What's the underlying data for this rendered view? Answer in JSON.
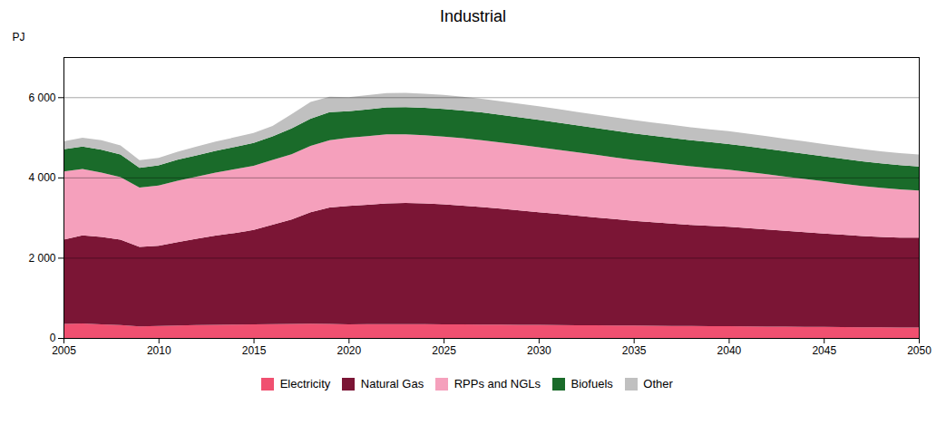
{
  "chart_data": {
    "type": "area",
    "stacked": true,
    "title": "Industrial",
    "ylabel": "PJ",
    "xlim": [
      2005,
      2050
    ],
    "ylim": [
      0,
      7000
    ],
    "xticks": [
      2005,
      2010,
      2015,
      2020,
      2025,
      2030,
      2035,
      2040,
      2045,
      2050
    ],
    "yticks": [
      0,
      {
        "value": 2000,
        "label": "2 000"
      },
      {
        "value": 4000,
        "label": "4 000"
      },
      {
        "value": 6000,
        "label": "6 000"
      }
    ],
    "grid": true,
    "legend": "bottom",
    "x": [
      2005,
      2006,
      2007,
      2008,
      2009,
      2010,
      2011,
      2012,
      2013,
      2014,
      2015,
      2016,
      2017,
      2018,
      2019,
      2020,
      2021,
      2022,
      2023,
      2024,
      2025,
      2026,
      2027,
      2028,
      2029,
      2030,
      2031,
      2032,
      2033,
      2034,
      2035,
      2036,
      2037,
      2038,
      2039,
      2040,
      2041,
      2042,
      2043,
      2044,
      2045,
      2046,
      2047,
      2048,
      2049,
      2050
    ],
    "series": [
      {
        "name": "Electricity",
        "color": "#F05070",
        "values": [
          350,
          360,
          340,
          320,
          290,
          300,
          310,
          320,
          330,
          335,
          340,
          345,
          350,
          355,
          350,
          340,
          342,
          344,
          345,
          343,
          340,
          338,
          335,
          332,
          328,
          325,
          322,
          318,
          315,
          312,
          308,
          305,
          302,
          298,
          295,
          292,
          288,
          285,
          282,
          278,
          275,
          272,
          268,
          265,
          262,
          258
        ]
      },
      {
        "name": "Natural Gas",
        "color": "#7B1535",
        "values": [
          2100,
          2200,
          2180,
          2130,
          1980,
          2000,
          2080,
          2150,
          2220,
          2280,
          2350,
          2480,
          2600,
          2780,
          2900,
          2950,
          2980,
          3010,
          3020,
          3010,
          2990,
          2960,
          2930,
          2890,
          2850,
          2810,
          2770,
          2730,
          2690,
          2650,
          2610,
          2580,
          2550,
          2520,
          2500,
          2480,
          2450,
          2420,
          2390,
          2360,
          2330,
          2300,
          2270,
          2250,
          2240,
          2240
        ]
      },
      {
        "name": "RPPs and NGLs",
        "color": "#F5A0BC",
        "values": [
          1700,
          1650,
          1600,
          1560,
          1480,
          1500,
          1530,
          1550,
          1570,
          1590,
          1600,
          1610,
          1630,
          1650,
          1680,
          1700,
          1710,
          1720,
          1710,
          1700,
          1690,
          1680,
          1665,
          1650,
          1635,
          1620,
          1600,
          1580,
          1560,
          1540,
          1520,
          1500,
          1480,
          1460,
          1440,
          1420,
          1400,
          1375,
          1350,
          1325,
          1300,
          1275,
          1250,
          1225,
          1200,
          1175
        ]
      },
      {
        "name": "Biofuels",
        "color": "#1A6B2A",
        "values": [
          550,
          560,
          570,
          560,
          490,
          500,
          520,
          530,
          545,
          555,
          570,
          590,
          640,
          680,
          700,
          660,
          665,
          670,
          680,
          685,
          690,
          690,
          690,
          688,
          685,
          682,
          678,
          674,
          670,
          666,
          662,
          658,
          654,
          650,
          646,
          642,
          638,
          634,
          630,
          626,
          622,
          618,
          614,
          610,
          606,
          600
        ]
      },
      {
        "name": "Other",
        "color": "#C0C0C0",
        "values": [
          200,
          220,
          240,
          230,
          190,
          190,
          200,
          220,
          230,
          240,
          250,
          260,
          360,
          420,
          380,
          350,
          353,
          356,
          353,
          350,
          348,
          346,
          344,
          342,
          340,
          338,
          336,
          334,
          332,
          330,
          328,
          326,
          324,
          322,
          320,
          318,
          316,
          314,
          312,
          310,
          308,
          306,
          304,
          302,
          300,
          300
        ]
      }
    ]
  }
}
